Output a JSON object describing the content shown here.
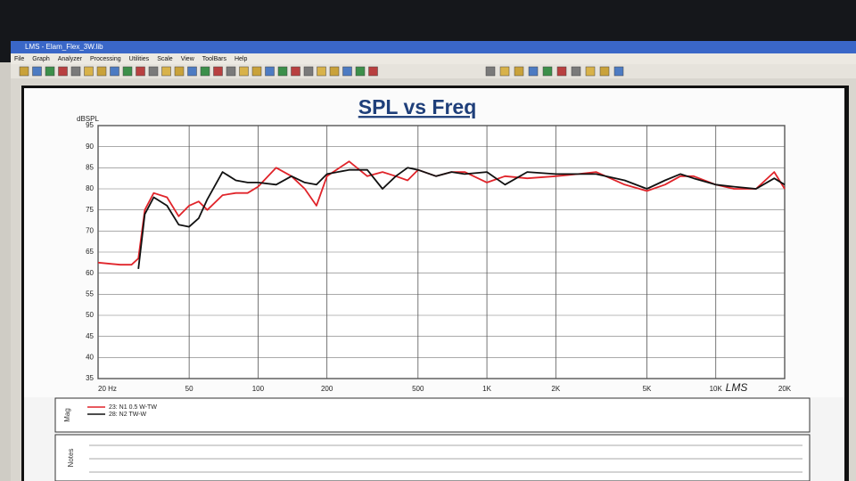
{
  "window": {
    "title": "LMS - Elam_Flex_3W.lib",
    "menu": [
      "File",
      "Graph",
      "Analyzer",
      "Processing",
      "Utilities",
      "Scale",
      "View",
      "ToolBars",
      "Help"
    ]
  },
  "panels": {
    "legend_label": "Mag",
    "notes_label": "Notes"
  },
  "chart_data": {
    "type": "line",
    "title": "SPL vs Freq",
    "y_label": "dBSPL",
    "annotation": "LMS",
    "xscale": "log",
    "grid": true,
    "xlim": [
      20,
      20000
    ],
    "ylim": [
      35,
      95
    ],
    "xticks": [
      {
        "value": 20,
        "label": "20 Hz"
      },
      50,
      100,
      200,
      500,
      {
        "value": 1000,
        "label": "1K"
      },
      {
        "value": 2000,
        "label": "2K"
      },
      {
        "value": 5000,
        "label": "5K"
      },
      {
        "value": 10000,
        "label": "10K"
      },
      {
        "value": 20000,
        "label": "20K"
      }
    ],
    "yticks": [
      35,
      40,
      45,
      50,
      55,
      60,
      65,
      70,
      75,
      80,
      85,
      90,
      95
    ],
    "x": [
      20,
      25,
      28,
      30,
      32,
      35,
      40,
      45,
      50,
      55,
      60,
      70,
      80,
      90,
      100,
      120,
      140,
      160,
      180,
      200,
      250,
      300,
      350,
      400,
      450,
      500,
      600,
      700,
      800,
      1000,
      1200,
      1500,
      2000,
      2500,
      3000,
      4000,
      5000,
      6000,
      7000,
      8000,
      10000,
      12000,
      15000,
      18000,
      20000
    ],
    "series": [
      {
        "name": "23: N1 0.5 W-TW",
        "color": "#e0242a",
        "values": [
          62.5,
          62,
          62,
          63.5,
          75,
          79,
          78,
          73.5,
          76,
          77,
          75,
          78.5,
          79,
          79,
          80.5,
          85,
          83,
          80,
          76,
          83,
          86.5,
          83,
          84,
          83,
          82,
          84.5,
          83,
          84,
          84,
          81.5,
          83,
          82.5,
          83,
          83.5,
          84,
          81,
          79.5,
          81,
          83,
          83,
          81,
          80,
          80,
          84,
          80
        ]
      },
      {
        "name": "28: N2 TW-W",
        "color": "#111111",
        "values": [
          null,
          null,
          null,
          61,
          74,
          78,
          76,
          71.5,
          71,
          73,
          77.5,
          84,
          82,
          81.5,
          81.5,
          81,
          83,
          81.5,
          81,
          83.5,
          84.5,
          84.5,
          80,
          83,
          85,
          84.5,
          83,
          84,
          83.5,
          84,
          81,
          84,
          83.5,
          83.5,
          83.5,
          82,
          80,
          82,
          83.5,
          82.5,
          81,
          80.5,
          80,
          82.5,
          81
        ]
      }
    ]
  }
}
